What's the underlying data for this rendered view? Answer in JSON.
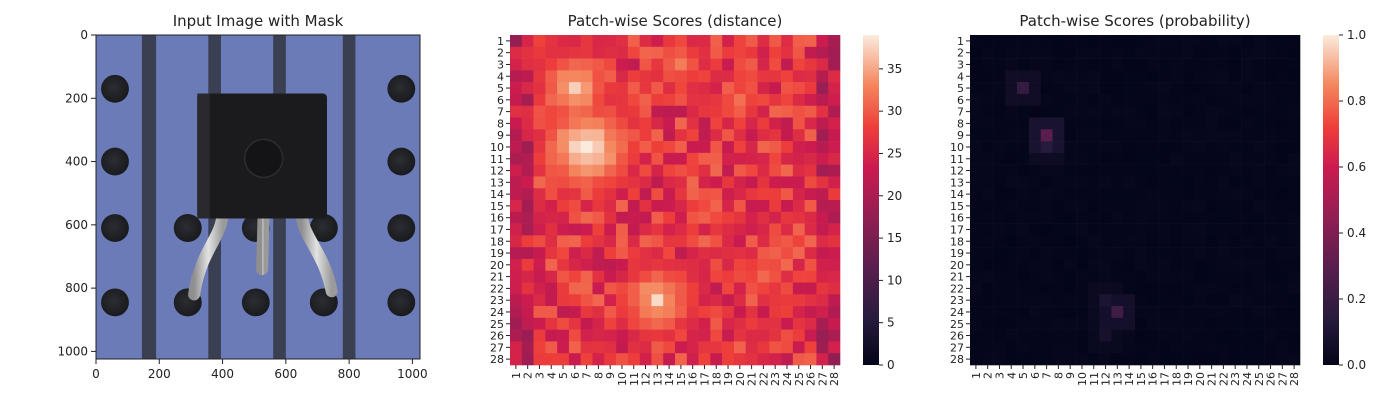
{
  "chart_data": [
    {
      "type": "image",
      "title": "Input Image with Mask",
      "xlim": [
        0,
        1024
      ],
      "ylim": [
        1024,
        0
      ],
      "x_ticks": [
        0,
        200,
        400,
        600,
        800,
        1000
      ],
      "y_ticks": [
        0,
        200,
        400,
        600,
        800,
        1000
      ],
      "colors": {
        "background": "#6b7bb8",
        "stripe": "#3a3f52",
        "hole": "#232428",
        "transistor": "#1b1b1d",
        "lead": "#b8b8b8"
      }
    },
    {
      "type": "heatmap",
      "title": "Patch-wise Scores (distance)",
      "rows": 28,
      "cols": 28,
      "tick_labels": [
        "1",
        "2",
        "3",
        "4",
        "5",
        "6",
        "7",
        "8",
        "9",
        "10",
        "11",
        "12",
        "13",
        "14",
        "15",
        "16",
        "17",
        "18",
        "19",
        "20",
        "21",
        "22",
        "23",
        "24",
        "25",
        "26",
        "27",
        "28"
      ],
      "colorbar": {
        "min": 0,
        "max": 39,
        "ticks": [
          0,
          5,
          10,
          15,
          20,
          25,
          30,
          35
        ]
      },
      "value_range": [
        18,
        39
      ],
      "hotspots": [
        {
          "row": 5,
          "col": 6,
          "value": 36
        },
        {
          "row": 10,
          "col": 7,
          "value": 39
        },
        {
          "row": 6,
          "col": 20,
          "value": 31
        },
        {
          "row": 21,
          "col": 22,
          "value": 31
        },
        {
          "row": 23,
          "col": 13,
          "value": 36
        },
        {
          "row": 3,
          "col": 15,
          "value": 32
        }
      ],
      "colormap": "rocket"
    },
    {
      "type": "heatmap",
      "title": "Patch-wise Scores (probability)",
      "rows": 28,
      "cols": 28,
      "tick_labels": [
        "1",
        "2",
        "3",
        "4",
        "5",
        "6",
        "7",
        "8",
        "9",
        "10",
        "11",
        "12",
        "13",
        "14",
        "15",
        "16",
        "17",
        "18",
        "19",
        "20",
        "21",
        "22",
        "23",
        "24",
        "25",
        "26",
        "27",
        "28"
      ],
      "colorbar": {
        "min": 0,
        "max": 1,
        "ticks": [
          "0.0",
          "0.2",
          "0.4",
          "0.6",
          "0.8",
          "1.0"
        ]
      },
      "value_range": [
        0,
        0.3
      ],
      "hotspots": [
        {
          "row": 5,
          "col": 5,
          "value": 0.18
        },
        {
          "row": 9,
          "col": 7,
          "value": 0.3
        },
        {
          "row": 10,
          "col": 7,
          "value": 0.14
        },
        {
          "row": 24,
          "col": 13,
          "value": 0.22
        },
        {
          "row": 23,
          "col": 12,
          "value": 0.1
        },
        {
          "row": 26,
          "col": 12,
          "value": 0.08
        }
      ],
      "colormap": "rocket"
    }
  ]
}
